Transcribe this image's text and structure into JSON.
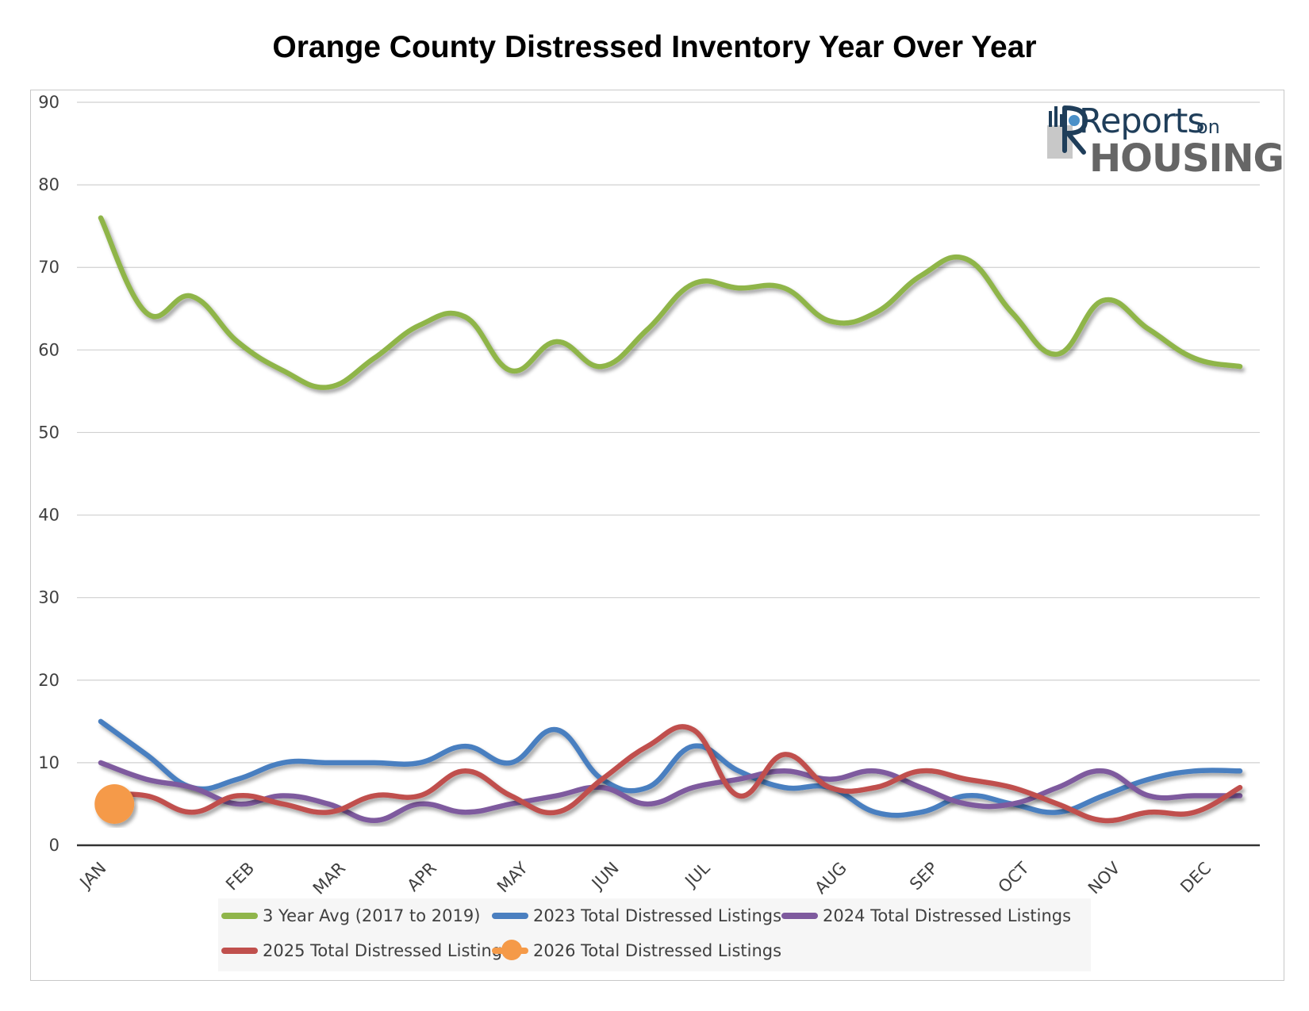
{
  "chart_data": {
    "type": "line",
    "title": "Orange County Distressed Inventory Year Over Year",
    "ylim": [
      0,
      90
    ],
    "yticks": [
      0,
      10,
      20,
      30,
      40,
      50,
      60,
      70,
      80,
      90
    ],
    "xlim": [
      0,
      25
    ],
    "grid": true,
    "legend_position": "bottom",
    "month_labels": [
      {
        "label": "JAN",
        "x": 0
      },
      {
        "label": "FEB",
        "x": 3.25
      },
      {
        "label": "MAR",
        "x": 5.25
      },
      {
        "label": "APR",
        "x": 7.25
      },
      {
        "label": "MAY",
        "x": 9.25
      },
      {
        "label": "JUN",
        "x": 11.25
      },
      {
        "label": "JUL",
        "x": 13.25
      },
      {
        "label": "AUG",
        "x": 16.25
      },
      {
        "label": "SEP",
        "x": 18.25
      },
      {
        "label": "OCT",
        "x": 20.25
      },
      {
        "label": "NOV",
        "x": 22.25
      },
      {
        "label": "DEC",
        "x": 24.25
      }
    ],
    "series": [
      {
        "name": "3 Year Avg (2017 to 2019)",
        "color": "#8fb54a",
        "marker": "line",
        "x": [
          0,
          1,
          2,
          3,
          4,
          5,
          6,
          7,
          8,
          9,
          10,
          11,
          12,
          13,
          14,
          15,
          16,
          17,
          18,
          19,
          20,
          21,
          22,
          23,
          24,
          25
        ],
        "values": [
          76,
          64.5,
          66.5,
          61,
          57.5,
          55.5,
          59,
          63,
          64,
          57.5,
          61,
          58,
          62.5,
          68,
          67.5,
          67.5,
          63.5,
          64.5,
          69,
          71,
          64.5,
          59.5,
          66,
          62.5,
          59,
          58
        ]
      },
      {
        "name": "2023 Total Distressed Listings",
        "color": "#4a7fc0",
        "marker": "line",
        "x": [
          0,
          1,
          2,
          3,
          4,
          5,
          6,
          7,
          8,
          9,
          10,
          11,
          12,
          13,
          14,
          15,
          16,
          17,
          18,
          19,
          20,
          21,
          22,
          23,
          24,
          25
        ],
        "values": [
          15,
          11,
          7,
          8,
          10,
          10,
          10,
          10,
          12,
          10,
          14,
          8,
          7,
          12,
          9,
          7,
          7,
          4,
          4,
          6,
          5,
          4,
          6,
          8,
          9,
          9
        ]
      },
      {
        "name": "2024 Total Distressed Listings",
        "color": "#7e5a9e",
        "marker": "line",
        "x": [
          0,
          1,
          2,
          3,
          4,
          5,
          6,
          7,
          8,
          9,
          10,
          11,
          12,
          13,
          14,
          15,
          16,
          17,
          18,
          19,
          20,
          21,
          22,
          23,
          24,
          25
        ],
        "values": [
          10,
          8,
          7,
          5,
          6,
          5,
          3,
          5,
          4,
          5,
          6,
          7,
          5,
          7,
          8,
          9,
          8,
          9,
          7,
          5,
          5,
          7,
          9,
          6,
          6,
          6
        ]
      },
      {
        "name": "2025 Total Distressed Listings",
        "color": "#c0504d",
        "marker": "line",
        "x": [
          0,
          1,
          2,
          3,
          4,
          5,
          6,
          7,
          8,
          9,
          10,
          11,
          12,
          13,
          14,
          15,
          16,
          17,
          18,
          19,
          20,
          21,
          22,
          23,
          24,
          25
        ],
        "values": [
          6,
          6,
          4,
          6,
          5,
          4,
          6,
          6,
          9,
          6,
          4,
          8,
          12,
          14,
          6,
          11,
          7,
          7,
          9,
          8,
          7,
          5,
          3,
          4,
          4,
          7
        ]
      },
      {
        "name": "2026 Total Distressed Listings",
        "color": "#f59a48",
        "marker": "point",
        "x": [
          0.3
        ],
        "values": [
          5
        ]
      }
    ]
  },
  "logo": {
    "word1": "Reports",
    "word2": "on",
    "word3": "HOUSING"
  }
}
